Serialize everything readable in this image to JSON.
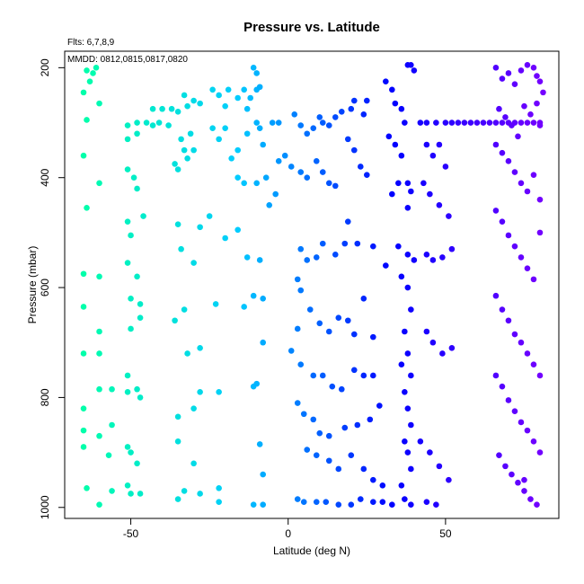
{
  "chart_data": {
    "type": "scatter",
    "title": "Pressure vs. Latitude",
    "xlabel": "Latitude (deg N)",
    "ylabel": "Pressure (mbar)",
    "xlim": [
      -71,
      86
    ],
    "ylim": [
      1020,
      170
    ],
    "y_axis_inverted": true,
    "grid": false,
    "legend": "none",
    "annotations": [
      "Flts: 6,7,8,9",
      "MMDD: 0812,0815,0817,0820"
    ],
    "x_ticks": [
      -50,
      0,
      50
    ],
    "x_tick_labels": [
      "-50",
      "0",
      "50"
    ],
    "y_ticks": [
      200,
      400,
      600,
      800,
      1000
    ],
    "y_tick_labels": [
      "200",
      "400",
      "600",
      "800",
      "1000"
    ],
    "color_scale": {
      "by": "latitude",
      "stops": [
        "#00ffaa",
        "#00ccff",
        "#0000ff",
        "#7700ff"
      ]
    },
    "points": [
      [
        -64,
        205
      ],
      [
        -62,
        210
      ],
      [
        -61,
        200
      ],
      [
        -63,
        225
      ],
      [
        -65,
        245
      ],
      [
        -64,
        295
      ],
      [
        -60,
        265
      ],
      [
        -65,
        360
      ],
      [
        -64,
        455
      ],
      [
        -60,
        410
      ],
      [
        -65,
        575
      ],
      [
        -60,
        580
      ],
      [
        -65,
        635
      ],
      [
        -60,
        680
      ],
      [
        -65,
        720
      ],
      [
        -60,
        720
      ],
      [
        -65,
        820
      ],
      [
        -60,
        785
      ],
      [
        -56,
        785
      ],
      [
        -65,
        860
      ],
      [
        -60,
        870
      ],
      [
        -65,
        890
      ],
      [
        -56,
        850
      ],
      [
        -57,
        905
      ],
      [
        -64,
        965
      ],
      [
        -60,
        995
      ],
      [
        -56,
        970
      ],
      [
        -51,
        305
      ],
      [
        -51,
        330
      ],
      [
        -48,
        300
      ],
      [
        -48,
        320
      ],
      [
        -51,
        385
      ],
      [
        -49,
        400
      ],
      [
        -48,
        420
      ],
      [
        -51,
        480
      ],
      [
        -50,
        505
      ],
      [
        -46,
        470
      ],
      [
        -51,
        555
      ],
      [
        -48,
        580
      ],
      [
        -50,
        620
      ],
      [
        -47,
        630
      ],
      [
        -50,
        675
      ],
      [
        -47,
        655
      ],
      [
        -51,
        760
      ],
      [
        -48,
        785
      ],
      [
        -51,
        790
      ],
      [
        -47,
        800
      ],
      [
        -51,
        890
      ],
      [
        -50,
        900
      ],
      [
        -48,
        920
      ],
      [
        -51,
        960
      ],
      [
        -50,
        975
      ],
      [
        -47,
        975
      ],
      [
        -43,
        275
      ],
      [
        -40,
        275
      ],
      [
        -37,
        275
      ],
      [
        -45,
        300
      ],
      [
        -43,
        305
      ],
      [
        -41,
        300
      ],
      [
        -38,
        305
      ],
      [
        -35,
        280
      ],
      [
        -33,
        250
      ],
      [
        -32,
        270
      ],
      [
        -30,
        260
      ],
      [
        -28,
        265
      ],
      [
        -34,
        330
      ],
      [
        -33,
        350
      ],
      [
        -35,
        385
      ],
      [
        -32,
        365
      ],
      [
        -30,
        350
      ],
      [
        -36,
        375
      ],
      [
        -31,
        320
      ],
      [
        -35,
        485
      ],
      [
        -34,
        530
      ],
      [
        -28,
        490
      ],
      [
        -30,
        555
      ],
      [
        -25,
        470
      ],
      [
        -36,
        660
      ],
      [
        -33,
        640
      ],
      [
        -32,
        720
      ],
      [
        -28,
        710
      ],
      [
        -35,
        835
      ],
      [
        -28,
        790
      ],
      [
        -30,
        820
      ],
      [
        -22,
        790
      ],
      [
        -35,
        880
      ],
      [
        -30,
        920
      ],
      [
        -35,
        985
      ],
      [
        -33,
        970
      ],
      [
        -28,
        975
      ],
      [
        -22,
        965
      ],
      [
        -24,
        240
      ],
      [
        -22,
        250
      ],
      [
        -20,
        270
      ],
      [
        -19,
        240
      ],
      [
        -16,
        255
      ],
      [
        -14,
        240
      ],
      [
        -13,
        275
      ],
      [
        -12,
        255
      ],
      [
        -10,
        240
      ],
      [
        -9,
        235
      ],
      [
        -11,
        200
      ],
      [
        -10,
        210
      ],
      [
        -24,
        310
      ],
      [
        -22,
        330
      ],
      [
        -20,
        310
      ],
      [
        -18,
        365
      ],
      [
        -16,
        350
      ],
      [
        -13,
        320
      ],
      [
        -10,
        300
      ],
      [
        -9,
        310
      ],
      [
        -8,
        340
      ],
      [
        -16,
        400
      ],
      [
        -14,
        410
      ],
      [
        -10,
        410
      ],
      [
        -7,
        400
      ],
      [
        -20,
        510
      ],
      [
        -16,
        495
      ],
      [
        -13,
        545
      ],
      [
        -9,
        550
      ],
      [
        -23,
        630
      ],
      [
        -14,
        635
      ],
      [
        -11,
        615
      ],
      [
        -8,
        620
      ],
      [
        -11,
        780
      ],
      [
        -10,
        775
      ],
      [
        -8,
        700
      ],
      [
        -9,
        885
      ],
      [
        -8,
        940
      ],
      [
        -22,
        990
      ],
      [
        -11,
        995
      ],
      [
        -8,
        995
      ],
      [
        -5,
        300
      ],
      [
        -3,
        300
      ],
      [
        -6,
        450
      ],
      [
        -4,
        430
      ],
      [
        -3,
        370
      ],
      [
        -1,
        360
      ],
      [
        1,
        380
      ],
      [
        2,
        285
      ],
      [
        4,
        305
      ],
      [
        6,
        320
      ],
      [
        8,
        310
      ],
      [
        11,
        300
      ],
      [
        10,
        290
      ],
      [
        13,
        305
      ],
      [
        15,
        290
      ],
      [
        17,
        280
      ],
      [
        20,
        275
      ],
      [
        21,
        260
      ],
      [
        25,
        260
      ],
      [
        24,
        285
      ],
      [
        4,
        390
      ],
      [
        6,
        400
      ],
      [
        9,
        370
      ],
      [
        11,
        390
      ],
      [
        13,
        410
      ],
      [
        15,
        415
      ],
      [
        19,
        330
      ],
      [
        21,
        350
      ],
      [
        23,
        380
      ],
      [
        25,
        395
      ],
      [
        4,
        530
      ],
      [
        6,
        550
      ],
      [
        9,
        545
      ],
      [
        11,
        520
      ],
      [
        15,
        540
      ],
      [
        18,
        520
      ],
      [
        19,
        480
      ],
      [
        22,
        520
      ],
      [
        27,
        525
      ],
      [
        31,
        560
      ],
      [
        3,
        585
      ],
      [
        4,
        605
      ],
      [
        7,
        640
      ],
      [
        10,
        665
      ],
      [
        13,
        680
      ],
      [
        16,
        655
      ],
      [
        19,
        660
      ],
      [
        21,
        685
      ],
      [
        24,
        620
      ],
      [
        27,
        690
      ],
      [
        3,
        675
      ],
      [
        1,
        715
      ],
      [
        4,
        740
      ],
      [
        8,
        760
      ],
      [
        11,
        760
      ],
      [
        14,
        780
      ],
      [
        17,
        785
      ],
      [
        21,
        750
      ],
      [
        24,
        760
      ],
      [
        27,
        760
      ],
      [
        3,
        810
      ],
      [
        5,
        830
      ],
      [
        8,
        840
      ],
      [
        10,
        865
      ],
      [
        13,
        870
      ],
      [
        18,
        855
      ],
      [
        22,
        850
      ],
      [
        26,
        840
      ],
      [
        29,
        815
      ],
      [
        6,
        895
      ],
      [
        9,
        905
      ],
      [
        13,
        915
      ],
      [
        16,
        930
      ],
      [
        20,
        905
      ],
      [
        24,
        930
      ],
      [
        27,
        950
      ],
      [
        30,
        960
      ],
      [
        3,
        985
      ],
      [
        5,
        990
      ],
      [
        9,
        990
      ],
      [
        12,
        990
      ],
      [
        16,
        995
      ],
      [
        20,
        995
      ],
      [
        23,
        985
      ],
      [
        27,
        990
      ],
      [
        30,
        990
      ],
      [
        33,
        995
      ],
      [
        31,
        225
      ],
      [
        33,
        240
      ],
      [
        34,
        265
      ],
      [
        36,
        275
      ],
      [
        37,
        300
      ],
      [
        38,
        195
      ],
      [
        39,
        195
      ],
      [
        40,
        205
      ],
      [
        32,
        325
      ],
      [
        34,
        340
      ],
      [
        36,
        360
      ],
      [
        35,
        410
      ],
      [
        33,
        430
      ],
      [
        38,
        410
      ],
      [
        39,
        425
      ],
      [
        38,
        455
      ],
      [
        35,
        525
      ],
      [
        38,
        540
      ],
      [
        40,
        550
      ],
      [
        36,
        580
      ],
      [
        38,
        600
      ],
      [
        39,
        640
      ],
      [
        37,
        680
      ],
      [
        38,
        720
      ],
      [
        36,
        740
      ],
      [
        39,
        760
      ],
      [
        37,
        790
      ],
      [
        38,
        820
      ],
      [
        39,
        850
      ],
      [
        37,
        880
      ],
      [
        38,
        900
      ],
      [
        39,
        930
      ],
      [
        36,
        960
      ],
      [
        37,
        985
      ],
      [
        39,
        995
      ],
      [
        42,
        300
      ],
      [
        44,
        300
      ],
      [
        47,
        300
      ],
      [
        50,
        300
      ],
      [
        52,
        300
      ],
      [
        54,
        300
      ],
      [
        56,
        300
      ],
      [
        58,
        300
      ],
      [
        60,
        300
      ],
      [
        62,
        300
      ],
      [
        64,
        300
      ],
      [
        66,
        300
      ],
      [
        68,
        300
      ],
      [
        70,
        300
      ],
      [
        72,
        300
      ],
      [
        74,
        300
      ],
      [
        76,
        300
      ],
      [
        78,
        300
      ],
      [
        80,
        300
      ],
      [
        44,
        340
      ],
      [
        46,
        360
      ],
      [
        48,
        340
      ],
      [
        50,
        380
      ],
      [
        43,
        410
      ],
      [
        45,
        430
      ],
      [
        48,
        450
      ],
      [
        51,
        470
      ],
      [
        44,
        540
      ],
      [
        46,
        550
      ],
      [
        49,
        545
      ],
      [
        52,
        530
      ],
      [
        44,
        680
      ],
      [
        46,
        700
      ],
      [
        49,
        720
      ],
      [
        52,
        710
      ],
      [
        42,
        880
      ],
      [
        45,
        900
      ],
      [
        48,
        925
      ],
      [
        51,
        950
      ],
      [
        44,
        990
      ],
      [
        47,
        995
      ],
      [
        66,
        200
      ],
      [
        68,
        220
      ],
      [
        70,
        210
      ],
      [
        72,
        230
      ],
      [
        74,
        205
      ],
      [
        76,
        195
      ],
      [
        78,
        200
      ],
      [
        79,
        215
      ],
      [
        80,
        225
      ],
      [
        81,
        245
      ],
      [
        67,
        275
      ],
      [
        69,
        290
      ],
      [
        71,
        305
      ],
      [
        73,
        325
      ],
      [
        75,
        270
      ],
      [
        77,
        285
      ],
      [
        79,
        265
      ],
      [
        80,
        305
      ],
      [
        66,
        340
      ],
      [
        68,
        355
      ],
      [
        70,
        370
      ],
      [
        72,
        390
      ],
      [
        74,
        410
      ],
      [
        76,
        425
      ],
      [
        78,
        395
      ],
      [
        80,
        440
      ],
      [
        66,
        460
      ],
      [
        68,
        480
      ],
      [
        70,
        505
      ],
      [
        72,
        525
      ],
      [
        74,
        545
      ],
      [
        76,
        565
      ],
      [
        78,
        585
      ],
      [
        80,
        500
      ],
      [
        66,
        615
      ],
      [
        68,
        640
      ],
      [
        70,
        660
      ],
      [
        72,
        685
      ],
      [
        74,
        700
      ],
      [
        76,
        720
      ],
      [
        78,
        740
      ],
      [
        80,
        760
      ],
      [
        66,
        760
      ],
      [
        68,
        780
      ],
      [
        70,
        805
      ],
      [
        72,
        825
      ],
      [
        74,
        845
      ],
      [
        76,
        860
      ],
      [
        78,
        880
      ],
      [
        80,
        900
      ],
      [
        67,
        905
      ],
      [
        69,
        925
      ],
      [
        71,
        940
      ],
      [
        73,
        955
      ],
      [
        75,
        970
      ],
      [
        77,
        985
      ],
      [
        79,
        995
      ],
      [
        75,
        950
      ]
    ]
  }
}
